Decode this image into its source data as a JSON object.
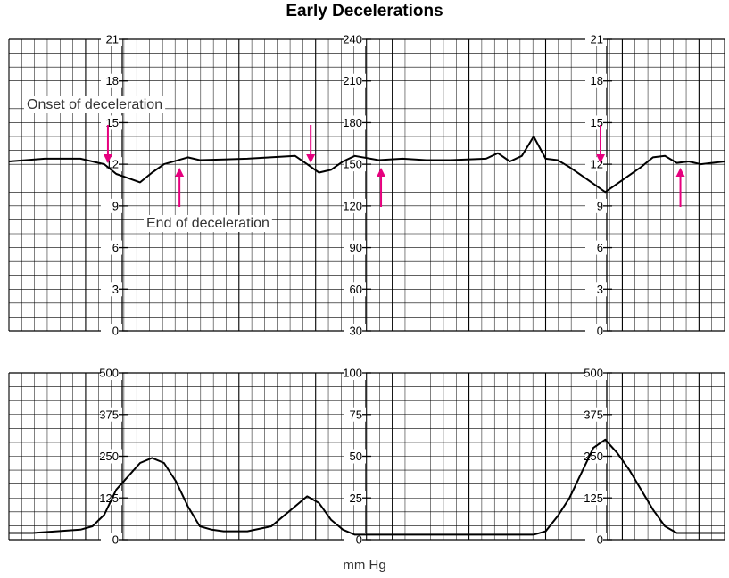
{
  "title": "Early Decelerations",
  "unit_label": "mm Hg",
  "annotations": {
    "onset": "Onset of deceleration",
    "end": "End of deceleration"
  },
  "colors": {
    "trace": "#000000",
    "grid": "#000000",
    "arrow": "#e6007e"
  },
  "chart_data": [
    {
      "type": "line",
      "name": "fetal-heart-rate",
      "grid": true,
      "axes": [
        {
          "ticks": [
            "21",
            "18",
            "15",
            "12",
            "9",
            "6",
            "3",
            "0"
          ]
        },
        {
          "ticks": [
            "240",
            "210",
            "180",
            "150",
            "120",
            "90",
            "60",
            "30"
          ]
        },
        {
          "ticks": [
            "21",
            "18",
            "15",
            "12",
            "9",
            "6",
            "3",
            "0"
          ]
        }
      ],
      "ylim": [
        30,
        240
      ],
      "xlim": [
        0,
        60
      ],
      "series": [
        {
          "x": [
            0,
            3,
            6,
            8,
            9,
            10,
            11,
            12,
            13,
            15,
            16,
            20,
            24,
            25,
            26,
            27,
            28,
            29,
            31,
            33,
            35,
            37,
            40,
            41,
            42,
            43,
            44,
            45,
            46,
            47,
            48,
            49,
            50,
            51,
            52,
            53,
            54,
            55,
            56,
            57,
            58,
            60
          ],
          "values": [
            152,
            154,
            154,
            150,
            143,
            140,
            137,
            144,
            150,
            155,
            153,
            154,
            156,
            150,
            144,
            146,
            152,
            156,
            153,
            154,
            153,
            153,
            154,
            158,
            152,
            156,
            170,
            154,
            153,
            148,
            142,
            136,
            130,
            136,
            142,
            148,
            155,
            156,
            151,
            152,
            150,
            152
          ]
        }
      ],
      "events": [
        {
          "kind": "onset",
          "x": 8.3
        },
        {
          "kind": "end",
          "x": 14.3
        },
        {
          "kind": "onset",
          "x": 25.3
        },
        {
          "kind": "end",
          "x": 31.2
        },
        {
          "kind": "onset",
          "x": 49.6
        },
        {
          "kind": "end",
          "x": 56.3
        }
      ]
    },
    {
      "type": "line",
      "name": "uterine-pressure",
      "grid": true,
      "axes": [
        {
          "ticks": [
            "500",
            "375",
            "250",
            "125",
            "0"
          ]
        },
        {
          "ticks": [
            "100",
            "75",
            "50",
            "25",
            "0"
          ]
        },
        {
          "ticks": [
            "500",
            "375",
            "250",
            "125",
            "0"
          ]
        }
      ],
      "ylim": [
        0,
        100
      ],
      "xlim": [
        0,
        60
      ],
      "series": [
        {
          "x": [
            0,
            2,
            4,
            6,
            7,
            8,
            9,
            10,
            11,
            12,
            13,
            14,
            15,
            16,
            17,
            18,
            19,
            20,
            22,
            23,
            24,
            25,
            26,
            27,
            28,
            29,
            30,
            32,
            34,
            36,
            38,
            40,
            42,
            43,
            44,
            45,
            46,
            47,
            48,
            49,
            50,
            51,
            52,
            53,
            54,
            55,
            56,
            57,
            58,
            60
          ],
          "values": [
            4,
            4,
            5,
            6,
            8,
            15,
            30,
            38,
            46,
            49,
            46,
            35,
            20,
            8,
            6,
            5,
            5,
            5,
            8,
            14,
            20,
            26,
            22,
            12,
            6,
            3,
            3,
            3,
            3,
            3,
            3,
            3,
            3,
            3,
            3,
            5,
            14,
            25,
            40,
            55,
            60,
            52,
            42,
            30,
            18,
            8,
            4,
            4,
            4,
            4
          ]
        }
      ]
    }
  ]
}
